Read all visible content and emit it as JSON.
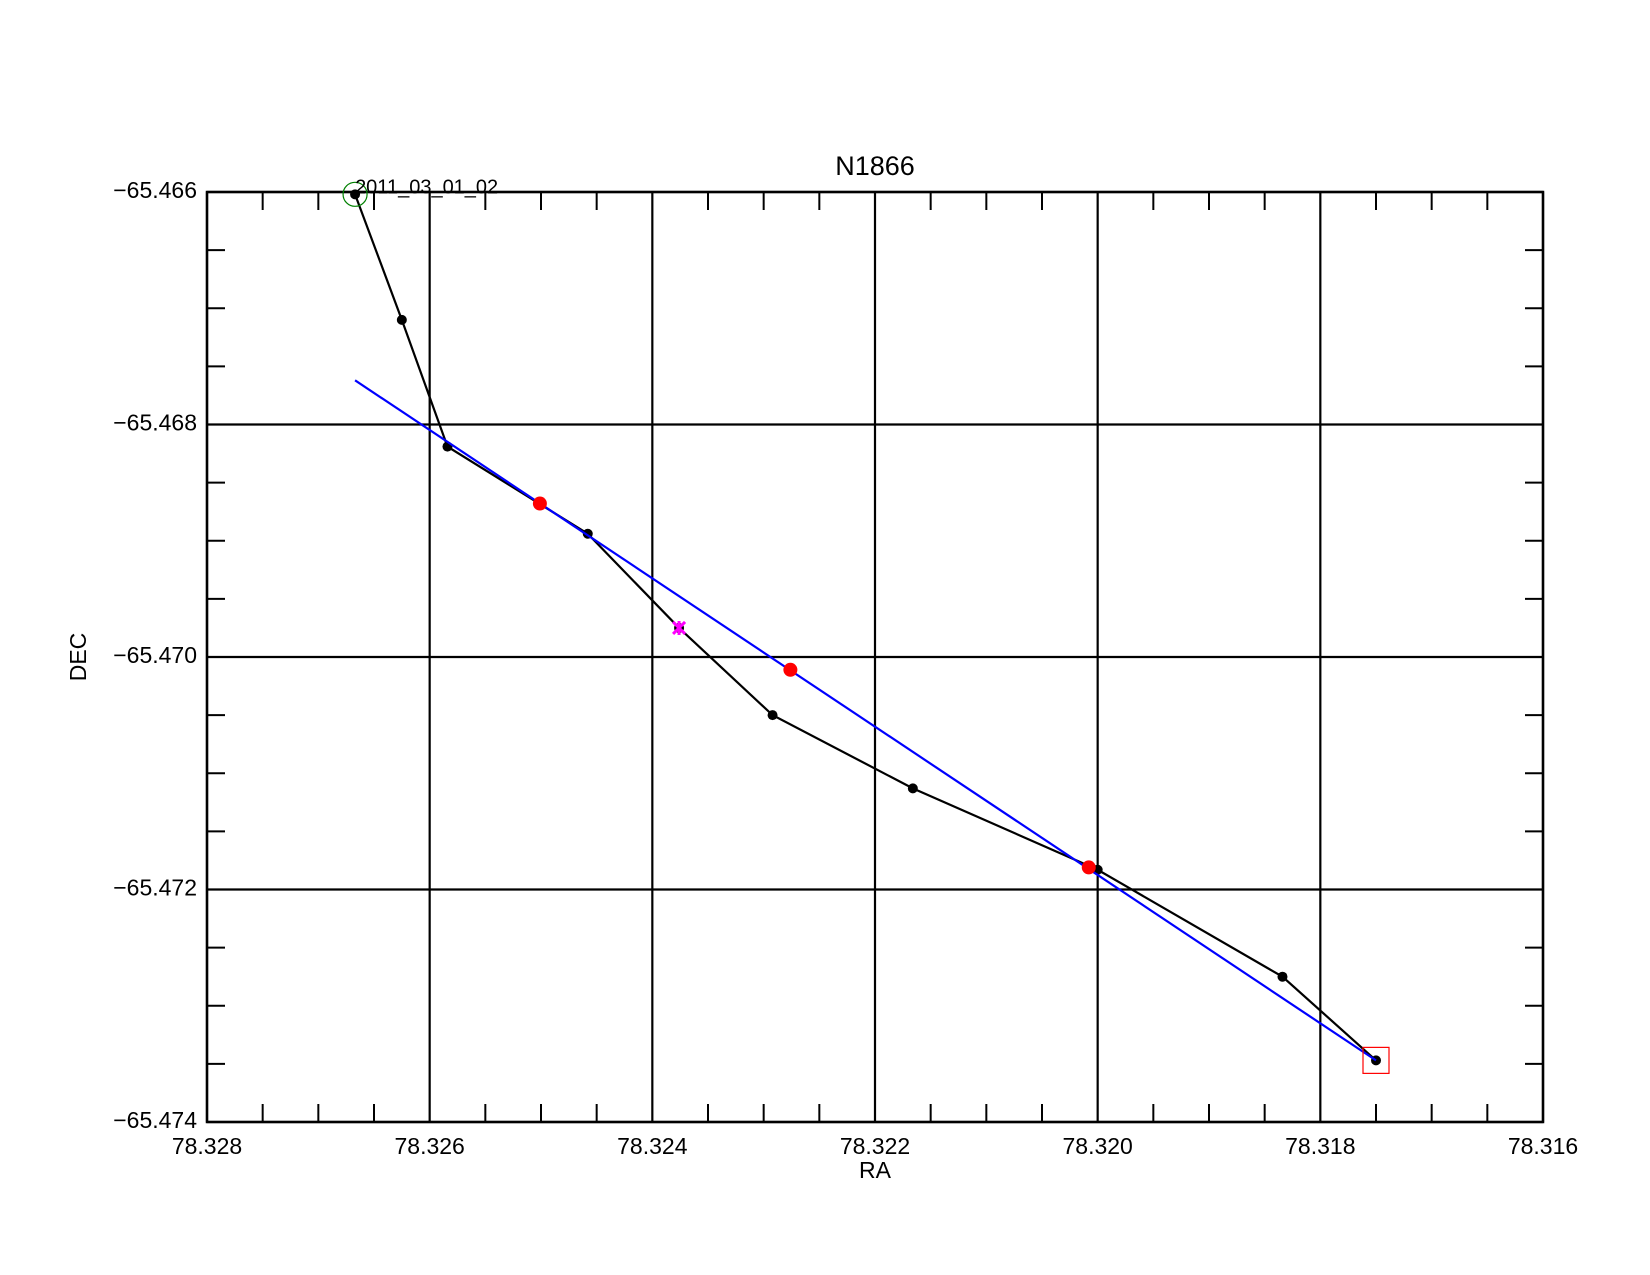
{
  "chart_data": {
    "type": "scatter",
    "title": "N1866",
    "xlabel": "RA",
    "ylabel": "DEC",
    "xlim": [
      78.328,
      78.316
    ],
    "xticks": [
      78.328,
      78.326,
      78.324,
      78.322,
      {
        "value": 78.32,
        "label": "78.320"
      },
      78.318,
      78.316
    ],
    "xminorticks": [
      78.3275,
      78.327,
      78.3265,
      78.3255,
      78.325,
      78.3245,
      78.3235,
      78.323,
      78.3225,
      78.3215,
      78.321,
      78.3205,
      78.3195,
      78.319,
      78.3185,
      78.3175,
      78.317,
      78.3165
    ],
    "ylim": [
      -65.474,
      -65.466
    ],
    "yticks": [
      {
        "value": -65.474,
        "label": "−65.474"
      },
      {
        "value": -65.472,
        "label": "−65.472"
      },
      {
        "value": -65.47,
        "label": "−65.470"
      },
      {
        "value": -65.468,
        "label": "−65.468"
      },
      {
        "value": -65.466,
        "label": "−65.466"
      }
    ],
    "yminorticks": [
      -65.4735,
      -65.473,
      -65.4725,
      -65.4715,
      -65.471,
      -65.4705,
      -65.4695,
      -65.469,
      -65.4685,
      -65.4675,
      -65.467,
      -65.4665
    ],
    "grid": true,
    "series": [
      {
        "color": "#000000",
        "line": true,
        "marker": "dot",
        "x": [
          78.32667,
          78.32625,
          78.32584,
          78.32458,
          78.32376,
          78.32292,
          78.32166,
          78.32,
          78.31834,
          78.3175
        ],
        "y": [
          -65.46602,
          -65.4671,
          -65.46819,
          -65.46894,
          -65.46975,
          -65.4705,
          -65.47113,
          -65.47183,
          -65.47275,
          -65.47347
        ]
      },
      {
        "color": "#0000ff",
        "line": true,
        "marker": "none",
        "x": [
          78.32667,
          78.3175
        ],
        "y": [
          -65.46762,
          -65.47347
        ]
      },
      {
        "color": "#ff0000",
        "line": false,
        "marker": "bigdot",
        "x": [
          78.32501,
          78.32276,
          78.32008
        ],
        "y": [
          -65.46868,
          -65.47011,
          -65.47181
        ]
      },
      {
        "color": "#ff00ff",
        "line": false,
        "marker": "cross",
        "x": [
          78.32376
        ],
        "y": [
          -65.46975
        ]
      },
      {
        "color": "#008000",
        "line": false,
        "marker": "open-circle",
        "x": [
          78.32667
        ],
        "y": [
          -65.46602
        ]
      },
      {
        "color": "#ff0000",
        "line": false,
        "marker": "open-square",
        "x": [
          78.3175
        ],
        "y": [
          -65.47347
        ]
      }
    ],
    "annotations": [
      {
        "text": "2011_03_01_02",
        "x": 78.32667,
        "y": -65.46602
      }
    ]
  }
}
